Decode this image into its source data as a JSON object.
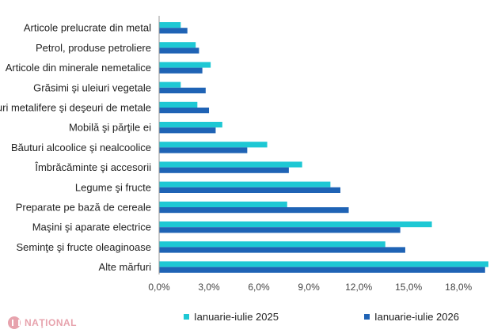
{
  "chart_data": {
    "type": "bar",
    "orientation": "horizontal",
    "categories": [
      "Articole prelucrate din metal",
      "Petrol, produse petroliere",
      "Articole din minerale nemetalice",
      "Grăsimi şi uleiuri vegetale",
      "Minereuri metalifere şi deşeuri de metale",
      "Mobilă şi părţile ei",
      "Băuturi alcoolice şi nealcoolice",
      "Îmbrăcăminte şi accesorii",
      "Legume şi fructe",
      "Preparate pe bază de cereale",
      "Maşini şi aparate electrice",
      "Seminţe şi fructe oleaginoase",
      "Alte mărfuri"
    ],
    "series": [
      {
        "name": "Ianuarie-iulie 2025",
        "color": "#1ec8d4",
        "values": [
          1.3,
          2.2,
          3.1,
          1.3,
          2.3,
          3.8,
          6.5,
          8.6,
          10.3,
          7.7,
          16.4,
          13.6,
          19.8
        ]
      },
      {
        "name": "Ianuarie-iulie 2026",
        "color": "#1f63b5",
        "values": [
          1.7,
          2.4,
          2.6,
          2.8,
          3.0,
          3.4,
          5.3,
          7.8,
          10.9,
          11.4,
          14.5,
          14.8,
          19.6
        ]
      }
    ],
    "xticks": [
      "0,0%",
      "3,0%",
      "6,0%",
      "9,0%",
      "12,0%",
      "15,0%",
      "18,0%"
    ],
    "xlim": [
      0,
      19.8
    ],
    "grid": false,
    "legend_position": "bottom"
  },
  "logo": {
    "text": "NAŢIONAL"
  }
}
